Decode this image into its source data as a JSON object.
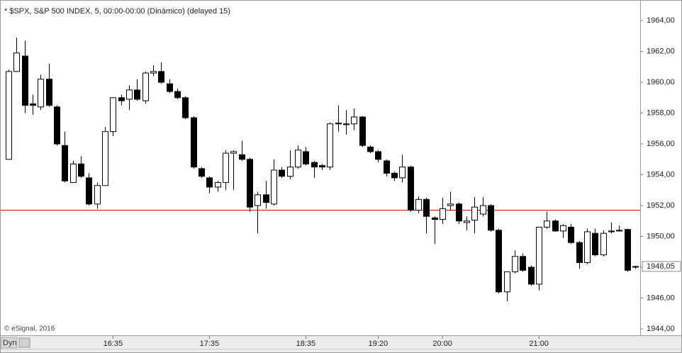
{
  "chart_data": {
    "type": "candlestick",
    "title": "* $SPX, S&P 500 INDEX, 5, 00:00-00:00 (Dinámico) (delayed 15)",
    "watermark": "© eSignal, 2016",
    "mode_button": "Dyn",
    "categories": [
      null,
      null,
      null,
      null,
      null,
      null,
      null,
      null,
      null,
      null,
      null,
      null,
      null,
      "16:35",
      null,
      null,
      null,
      null,
      null,
      null,
      null,
      null,
      null,
      null,
      null,
      "17:35",
      null,
      null,
      null,
      null,
      null,
      null,
      null,
      null,
      null,
      null,
      null,
      "18:35",
      null,
      null,
      null,
      null,
      null,
      null,
      null,
      null,
      "19:20",
      null,
      null,
      null,
      null,
      null,
      null,
      null,
      "20:00",
      null,
      null,
      null,
      null,
      null,
      null,
      null,
      null,
      null,
      null,
      null,
      "21:00",
      null,
      null,
      null,
      null,
      null,
      null,
      null,
      null,
      null,
      null,
      null,
      null
    ],
    "open": [
      1955.0,
      1960.7,
      1961.7,
      1958.6,
      1958.4,
      1960.2,
      1958.4,
      1955.9,
      1953.5,
      1954.7,
      1953.8,
      1952.1,
      1953.3,
      1956.8,
      1959.0,
      1958.9,
      1959.5,
      1958.8,
      1960.6,
      1960.7,
      1959.9,
      1959.4,
      1959.0,
      1957.7,
      1954.4,
      1953.8,
      1953.2,
      1953.5,
      1955.4,
      1955.3,
      1955.0,
      1952.0,
      1952.7,
      1952.1,
      1954.3,
      1953.9,
      1954.5,
      1955.5,
      1954.8,
      1954.6,
      1954.5,
      1957.35,
      1957.3,
      1957.3,
      1957.75,
      1955.8,
      1955.5,
      1954.9,
      1954.1,
      1953.8,
      1954.5,
      1951.7,
      1952.4,
      1951.2,
      1951.1,
      1952.0,
      1952.1,
      1950.9,
      1951.05,
      1951.45,
      1952.0,
      1950.4,
      1946.4,
      1947.7,
      1948.7,
      1948.0,
      1946.9,
      1950.6,
      1951.0,
      1950.35,
      1950.6,
      1949.6,
      1948.3,
      1950.2,
      1948.8,
      1950.3,
      1950.35,
      1950.45,
      1948.0
    ],
    "high": [
      1960.8,
      1962.9,
      1962.7,
      1959.2,
      1960.5,
      1961.2,
      1958.5,
      1956.8,
      1954.9,
      1955.2,
      1954.1,
      1953.5,
      1957.1,
      1959.0,
      1959.2,
      1959.8,
      1960.2,
      1960.7,
      1961.1,
      1961.3,
      1960.2,
      1959.6,
      1959.1,
      1957.8,
      1954.5,
      1953.9,
      1953.6,
      1955.6,
      1955.6,
      1956.2,
      1955.1,
      1952.9,
      1953.6,
      1955.0,
      1954.5,
      1955.6,
      1955.9,
      1955.8,
      1954.9,
      1954.7,
      1957.4,
      1958.5,
      1958.2,
      1958.3,
      1957.8,
      1955.9,
      1955.6,
      1955.0,
      1954.2,
      1955.3,
      1954.6,
      1952.6,
      1952.5,
      1951.3,
      1952.5,
      1952.9,
      1952.2,
      1951.3,
      1952.55,
      1952.55,
      1952.1,
      1950.5,
      1947.7,
      1949.1,
      1948.9,
      1948.1,
      1950.6,
      1951.6,
      1951.1,
      1950.8,
      1950.8,
      1949.7,
      1950.5,
      1950.5,
      1950.4,
      1950.9,
      1950.7,
      1950.5,
      1948.1
    ],
    "low": [
      1955.0,
      1960.7,
      1958.0,
      1957.9,
      1958.2,
      1958.4,
      1955.9,
      1953.5,
      1953.5,
      1953.8,
      1952.0,
      1951.8,
      1953.3,
      1956.5,
      1958.5,
      1958.2,
      1958.8,
      1958.6,
      1960.4,
      1959.9,
      1959.3,
      1958.9,
      1957.6,
      1954.4,
      1953.8,
      1952.8,
      1952.9,
      1953.0,
      1953.0,
      1954.9,
      1951.6,
      1950.2,
      1951.8,
      1952.0,
      1953.8,
      1953.7,
      1954.4,
      1954.6,
      1953.8,
      1954.3,
      1954.3,
      1956.8,
      1956.6,
      1956.9,
      1955.8,
      1955.4,
      1954.8,
      1953.9,
      1953.6,
      1953.5,
      1951.6,
      1951.5,
      1950.2,
      1949.5,
      1950.8,
      1951.7,
      1950.8,
      1950.4,
      1950.2,
      1951.3,
      1950.3,
      1946.3,
      1945.8,
      1947.6,
      1947.7,
      1946.8,
      1946.5,
      1950.5,
      1950.3,
      1949.9,
      1949.5,
      1947.9,
      1948.2,
      1948.7,
      1948.7,
      1950.2,
      1950.3,
      1947.7,
      1947.9
    ],
    "close": [
      1960.7,
      1961.9,
      1958.5,
      1958.5,
      1960.2,
      1958.5,
      1956.0,
      1953.6,
      1954.7,
      1953.9,
      1952.1,
      1953.3,
      1956.8,
      1959.0,
      1958.8,
      1959.5,
      1958.9,
      1960.6,
      1960.7,
      1960.0,
      1959.4,
      1959.0,
      1957.7,
      1954.5,
      1953.9,
      1953.2,
      1953.5,
      1955.4,
      1955.5,
      1955.0,
      1951.9,
      1952.7,
      1952.2,
      1954.3,
      1953.9,
      1954.5,
      1955.6,
      1954.7,
      1954.5,
      1954.5,
      1957.3,
      1957.3,
      1957.25,
      1957.75,
      1955.9,
      1955.5,
      1955.0,
      1954.1,
      1953.8,
      1954.5,
      1951.7,
      1952.4,
      1951.3,
      1951.1,
      1951.8,
      1952.1,
      1951.0,
      1951.0,
      1951.9,
      1952.0,
      1950.4,
      1946.4,
      1947.7,
      1948.7,
      1947.8,
      1946.9,
      1950.6,
      1951.0,
      1950.35,
      1950.7,
      1949.6,
      1948.3,
      1950.3,
      1948.8,
      1950.2,
      1950.35,
      1950.4,
      1947.8,
      1948.05
    ],
    "up_color": "#ffffff",
    "down_color": "#000000",
    "reference_line": 1951.7,
    "reference_line_color": "#d40000",
    "last_price": 1948.05,
    "last_price_label": "1948,05",
    "ylim": [
      1943.63,
      1965.2
    ],
    "yticks": [
      {
        "value": 1944,
        "label": "1944,00"
      },
      {
        "value": 1946,
        "label": "1946,00"
      },
      {
        "value": 1948,
        "label": "1948,00"
      },
      {
        "value": 1950,
        "label": "1950,00"
      },
      {
        "value": 1952,
        "label": "1952,00"
      },
      {
        "value": 1954,
        "label": "1954,00"
      },
      {
        "value": 1956,
        "label": "1956,00"
      },
      {
        "value": 1958,
        "label": "1958,00"
      },
      {
        "value": 1960,
        "label": "1960,00"
      },
      {
        "value": 1962,
        "label": "1962,00"
      },
      {
        "value": 1964,
        "label": "1964,00"
      }
    ]
  }
}
